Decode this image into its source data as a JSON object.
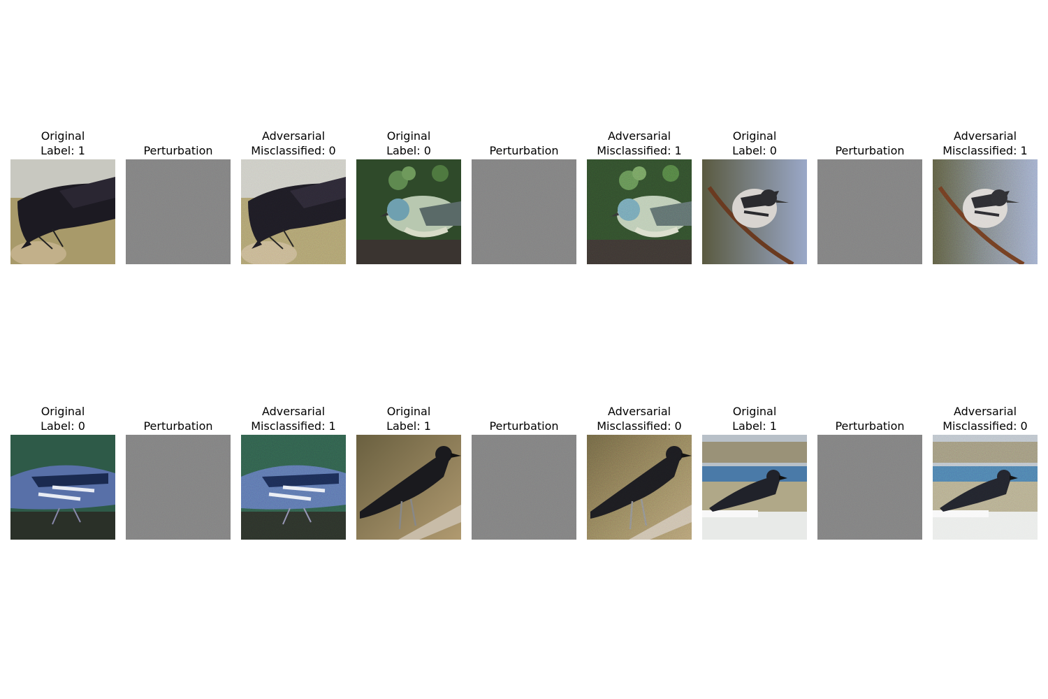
{
  "figure": {
    "rows": [
      {
        "triplets": [
          {
            "original": {
              "line1": "Original",
              "line2": "Label: 1",
              "scene": "crow-ground",
              "bg": "#a89a72",
              "bird": "#1c1a22"
            },
            "perturbation": {
              "line1": "",
              "line2": "Perturbation"
            },
            "adversarial": {
              "line1": "Adversarial",
              "line2": "Misclassified: 0",
              "scene": "crow-ground",
              "bg": "#a89a72",
              "bird": "#1c1a22"
            }
          },
          {
            "original": {
              "line1": "Original",
              "line2": "Label: 0",
              "scene": "warbler-leaves",
              "bg": "#2f4a2a",
              "bird": "#b8c8b0"
            },
            "perturbation": {
              "line1": "",
              "line2": "Perturbation"
            },
            "adversarial": {
              "line1": "Adversarial",
              "line2": "Misclassified: 1",
              "scene": "warbler-leaves",
              "bg": "#2f4a2a",
              "bird": "#b8c8b0"
            }
          },
          {
            "original": {
              "line1": "Original",
              "line2": "Label: 0",
              "scene": "warbler-branch",
              "bg": "#8a8a78",
              "bird": "#d8d4d0"
            },
            "perturbation": {
              "line1": "",
              "line2": "Perturbation"
            },
            "adversarial": {
              "line1": "Adversarial",
              "line2": "Misclassified: 1",
              "scene": "warbler-branch",
              "bg": "#8a8a78",
              "bird": "#d8d4d0"
            }
          }
        ]
      },
      {
        "triplets": [
          {
            "original": {
              "line1": "Original",
              "line2": "Label: 0",
              "scene": "warbler-blue",
              "bg": "#2e5a48",
              "bird": "#5870a8"
            },
            "perturbation": {
              "line1": "",
              "line2": "Perturbation"
            },
            "adversarial": {
              "line1": "Adversarial",
              "line2": "Misclassified: 1",
              "scene": "warbler-blue",
              "bg": "#2e5a48",
              "bird": "#5870a8"
            }
          },
          {
            "original": {
              "line1": "Original",
              "line2": "Label: 1",
              "scene": "crow-branch",
              "bg": "#8c7a50",
              "bird": "#1a1a1e"
            },
            "perturbation": {
              "line1": "",
              "line2": "Perturbation"
            },
            "adversarial": {
              "line1": "Adversarial",
              "line2": "Misclassified: 0",
              "scene": "crow-branch",
              "bg": "#8c7a50",
              "bird": "#1a1a1e"
            }
          },
          {
            "original": {
              "line1": "Original",
              "line2": "Label: 1",
              "scene": "crow-rail",
              "bg": "#b0a890",
              "bird": "#20222a"
            },
            "perturbation": {
              "line1": "",
              "line2": "Perturbation"
            },
            "adversarial": {
              "line1": "Adversarial",
              "line2": "Misclassified: 0",
              "scene": "crow-rail",
              "bg": "#b0a890",
              "bird": "#20222a"
            }
          }
        ]
      }
    ],
    "perturbation_color": "#808080"
  }
}
